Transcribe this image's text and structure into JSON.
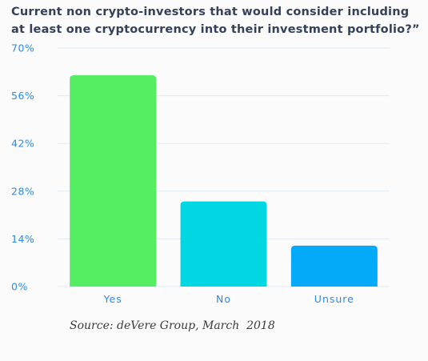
{
  "chart_data": {
    "type": "bar",
    "title": "Current non crypto-investors that would consider including at least one cryptocurrency into their investment portfolio?”",
    "categories": [
      "Yes",
      "No",
      "Unsure"
    ],
    "values": [
      62,
      25,
      12
    ],
    "y_ticks": [
      "0%",
      "14%",
      "28%",
      "42%",
      "56%",
      "70%"
    ],
    "ylim": [
      0,
      70
    ],
    "grid": true,
    "xlabel": "",
    "ylabel": "",
    "colors": [
      "#55ee63",
      "#00d7e3",
      "#04a9f8"
    ],
    "tick_color": "#2e8ae6",
    "grid_color": "#dfe9f4",
    "source": "Source: deVere Group, March  2018"
  }
}
